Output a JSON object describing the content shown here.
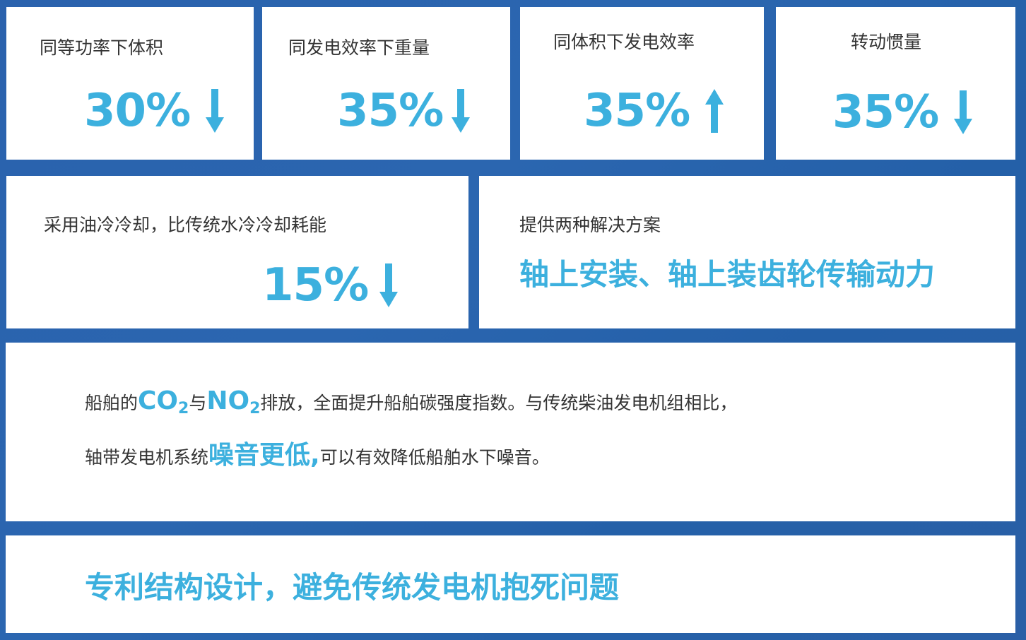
{
  "accent_color": "#3cb0de",
  "background_color": "#2a62ad",
  "stats": [
    {
      "label": "同等功率下体积",
      "value": "30%",
      "direction": "down",
      "icon": "arrow-down-icon"
    },
    {
      "label": "同发电效率下重量",
      "value": "35%",
      "direction": "down",
      "icon": "arrow-down-icon"
    },
    {
      "label": "同体积下发电效率",
      "value": "35%",
      "direction": "up",
      "icon": "arrow-up-icon"
    },
    {
      "label": "转动惯量",
      "value": "35%",
      "direction": "down",
      "icon": "arrow-down-icon"
    }
  ],
  "cooling": {
    "label": "采用油冷冷却，比传统水冷冷却耗能",
    "value": "15%",
    "direction": "down",
    "icon": "arrow-down-icon"
  },
  "solutions": {
    "label": "提供两种解决方案",
    "highlight": "轴上安装、轴上装齿轮传输动力"
  },
  "emissions": {
    "line1": {
      "pre": "船舶的",
      "co": "CO",
      "sub1": "2",
      "mid": "与",
      "no": "NO",
      "sub2": "2",
      "post": "排放，全面提升船舶碳强度指数。与传统柴油发电机组相比，"
    },
    "line2": {
      "pre": "轴带发电机系统",
      "highlight": "噪音更低,",
      "post": "可以有效降低船舶水下噪音。"
    }
  },
  "patent": {
    "text": "专利结构设计，避免传统发电机抱死问题"
  }
}
